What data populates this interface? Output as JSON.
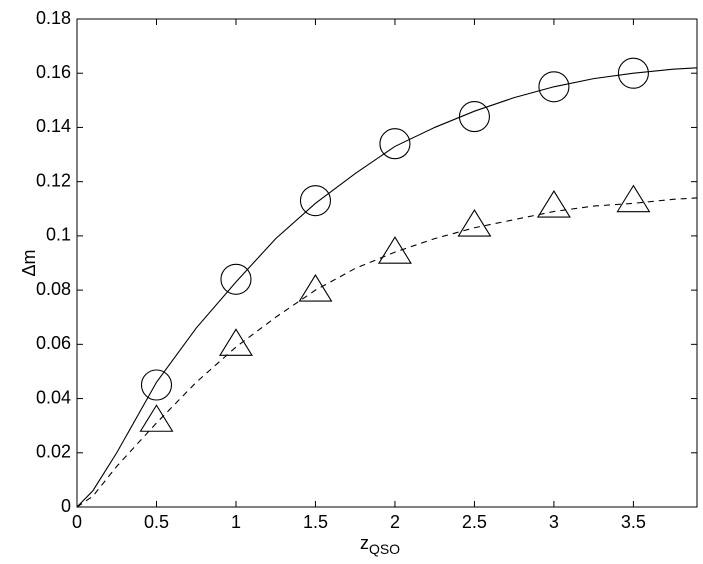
{
  "chart_data": {
    "type": "line",
    "xlabel": "z",
    "xlabel_sub": "QSO",
    "ylabel": "Δm",
    "xlim": [
      0,
      3.9
    ],
    "ylim": [
      0,
      0.18
    ],
    "xticks": [
      0,
      0.5,
      1,
      1.5,
      2,
      2.5,
      3,
      3.5
    ],
    "yticks": [
      0,
      0.02,
      0.04,
      0.06,
      0.08,
      0.1,
      0.12,
      0.14,
      0.16,
      0.18
    ],
    "grid": false,
    "series": [
      {
        "kind": "line",
        "linestyle": "solid",
        "color": "#000000",
        "x": [
          0,
          0.1,
          0.25,
          0.5,
          0.75,
          1,
          1.25,
          1.5,
          1.75,
          2,
          2.25,
          2.5,
          2.75,
          3,
          3.25,
          3.5,
          3.75,
          3.9
        ],
        "y": [
          0,
          0.006,
          0.02,
          0.046,
          0.066,
          0.083,
          0.099,
          0.112,
          0.123,
          0.133,
          0.14,
          0.146,
          0.151,
          0.155,
          0.158,
          0.16,
          0.1615,
          0.162
        ]
      },
      {
        "kind": "line",
        "linestyle": "dashed",
        "color": "#000000",
        "x": [
          0,
          0.1,
          0.25,
          0.5,
          0.75,
          1,
          1.25,
          1.5,
          1.75,
          2,
          2.25,
          2.5,
          2.75,
          3,
          3.25,
          3.5,
          3.75,
          3.9
        ],
        "y": [
          0,
          0.004,
          0.015,
          0.031,
          0.046,
          0.059,
          0.07,
          0.08,
          0.088,
          0.094,
          0.099,
          0.103,
          0.106,
          0.109,
          0.111,
          0.112,
          0.1135,
          0.114
        ]
      },
      {
        "kind": "scatter",
        "marker": "circle",
        "color": "#000000",
        "x": [
          0.5,
          1,
          1.5,
          2,
          2.5,
          3,
          3.5
        ],
        "y": [
          0.045,
          0.084,
          0.113,
          0.134,
          0.144,
          0.155,
          0.16
        ]
      },
      {
        "kind": "scatter",
        "marker": "triangle",
        "color": "#000000",
        "x": [
          0.5,
          1,
          1.5,
          2,
          2.5,
          3,
          3.5
        ],
        "y": [
          0.032,
          0.06,
          0.08,
          0.094,
          0.104,
          0.111,
          0.113
        ]
      }
    ]
  }
}
